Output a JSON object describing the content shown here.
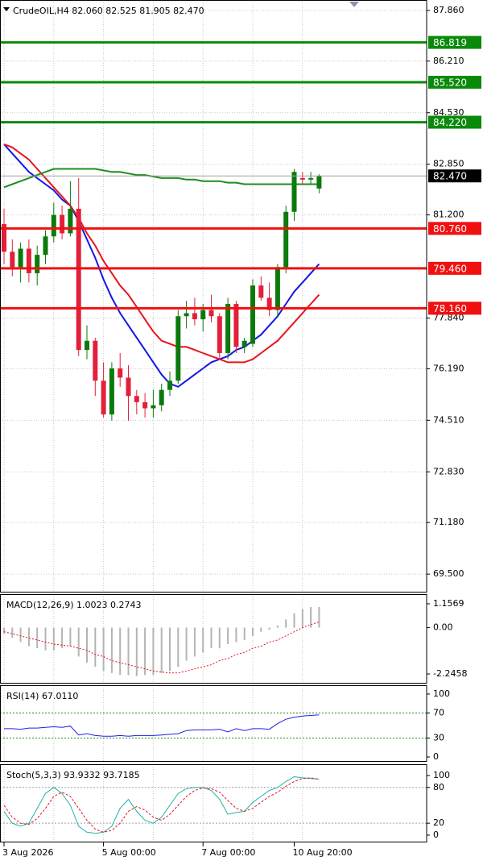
{
  "chart_data": [
    {
      "type": "candlestick",
      "title": "CrudeOIL,H4 82.060 82.525 81.905 82.470",
      "categories": [
        "3 Aug 2026",
        null,
        null,
        null,
        null,
        null,
        null,
        null,
        null,
        null,
        null,
        null,
        "5 Aug 00:00",
        null,
        null,
        null,
        null,
        null,
        null,
        null,
        null,
        null,
        null,
        null,
        "7 Aug 00:00",
        null,
        null,
        null,
        null,
        null,
        null,
        null,
        null,
        null,
        null,
        "10 Aug 20:00",
        null,
        null,
        null
      ],
      "open": [
        80.9,
        80.0,
        79.5,
        80.1,
        79.3,
        79.9,
        80.5,
        81.2,
        80.6,
        81.4,
        76.8,
        77.1,
        75.8,
        74.7,
        76.2,
        75.9,
        75.3,
        75.1,
        74.9,
        75.0,
        75.5,
        75.8,
        77.9,
        78.0,
        77.8,
        78.1,
        77.9,
        76.7,
        78.3,
        76.9,
        77.0,
        78.9,
        78.5,
        78.1,
        79.5,
        81.3,
        82.4,
        82.35,
        82.06
      ],
      "high": [
        81.4,
        80.4,
        80.3,
        80.4,
        80.2,
        80.7,
        81.6,
        81.5,
        82.3,
        82.4,
        77.6,
        77.2,
        76.4,
        76.4,
        76.7,
        76.3,
        75.5,
        75.4,
        75.5,
        75.7,
        76.1,
        78.1,
        78.4,
        78.5,
        78.3,
        78.6,
        78.0,
        78.5,
        78.4,
        77.2,
        79.1,
        79.2,
        79.0,
        79.6,
        81.5,
        82.7,
        82.6,
        82.6,
        82.525
      ],
      "low": [
        79.6,
        79.2,
        79.0,
        79.0,
        78.9,
        79.6,
        80.3,
        80.4,
        80.5,
        76.6,
        76.5,
        75.3,
        74.6,
        74.5,
        75.6,
        74.5,
        74.7,
        74.6,
        74.6,
        74.8,
        75.3,
        75.7,
        77.5,
        77.6,
        77.4,
        77.7,
        76.5,
        76.5,
        76.7,
        76.7,
        76.9,
        78.4,
        77.9,
        77.9,
        79.3,
        81.0,
        82.2,
        82.2,
        81.905
      ],
      "close": [
        80.0,
        79.5,
        80.1,
        79.3,
        79.9,
        80.5,
        81.2,
        80.6,
        81.4,
        76.8,
        77.1,
        75.8,
        74.7,
        76.2,
        75.9,
        75.3,
        75.1,
        74.9,
        75.0,
        75.5,
        75.8,
        77.9,
        78.0,
        77.8,
        78.1,
        77.9,
        76.7,
        78.3,
        76.9,
        77.1,
        78.9,
        78.5,
        78.1,
        79.5,
        81.3,
        82.6,
        82.35,
        82.4,
        82.47
      ],
      "up_color": "#0b7a0b",
      "down_color": "#e3203a",
      "series": [
        {
          "color": "#1515e6",
          "values": [
            83.5,
            83.2,
            82.9,
            82.6,
            82.4,
            82.2,
            82.0,
            81.7,
            81.5,
            81.0,
            80.4,
            79.8,
            79.1,
            78.5,
            78.0,
            77.6,
            77.2,
            76.8,
            76.4,
            76.0,
            75.7,
            75.6,
            75.8,
            76.0,
            76.2,
            76.4,
            76.5,
            76.6,
            76.8,
            76.9,
            77.1,
            77.3,
            77.6,
            77.9,
            78.3,
            78.7,
            79.0,
            79.3,
            79.6
          ]
        },
        {
          "color": "#e8141e",
          "values": [
            83.5,
            83.4,
            83.2,
            83.0,
            82.7,
            82.4,
            82.1,
            81.8,
            81.5,
            81.1,
            80.6,
            80.2,
            79.7,
            79.3,
            78.9,
            78.6,
            78.2,
            77.8,
            77.4,
            77.1,
            77.0,
            76.9,
            76.9,
            76.8,
            76.7,
            76.6,
            76.5,
            76.4,
            76.4,
            76.4,
            76.5,
            76.7,
            76.9,
            77.1,
            77.4,
            77.7,
            78.0,
            78.3,
            78.6
          ]
        },
        {
          "color": "#1e8c1e",
          "values": [
            82.1,
            82.2,
            82.3,
            82.4,
            82.5,
            82.6,
            82.7,
            82.7,
            82.7,
            82.7,
            82.7,
            82.7,
            82.65,
            82.6,
            82.6,
            82.55,
            82.5,
            82.5,
            82.45,
            82.4,
            82.4,
            82.4,
            82.35,
            82.35,
            82.3,
            82.3,
            82.3,
            82.25,
            82.25,
            82.2,
            82.2,
            82.2,
            82.2,
            82.2,
            82.2,
            82.2,
            82.2,
            82.2,
            82.2
          ]
        }
      ],
      "hlines": {
        "values": [
          86.819,
          85.52,
          84.22,
          80.76,
          79.46,
          78.16
        ],
        "value_labels": [
          "86.819",
          "85.520",
          "84.220",
          "80.760",
          "79.460",
          "78.160"
        ],
        "colors": [
          "#0a8a0a",
          "#0a8a0a",
          "#0a8a0a",
          "#f01010",
          "#f01010",
          "#f01010"
        ]
      },
      "last": {
        "value": 82.47,
        "label": "82.470"
      },
      "ylim": [
        68.9,
        88.2
      ],
      "yticks": [
        {
          "value": 87.86,
          "label": "87.860"
        },
        {
          "value": 86.21,
          "label": "86.210"
        },
        {
          "value": 84.53,
          "label": "84.530"
        },
        {
          "value": 82.85,
          "label": "82.850"
        },
        {
          "value": 81.2,
          "label": "81.200"
        },
        {
          "value": 77.84,
          "label": "77.840"
        },
        {
          "value": 76.19,
          "label": "76.190"
        },
        {
          "value": 74.51,
          "label": "74.510"
        },
        {
          "value": 72.83,
          "label": "72.830"
        },
        {
          "value": 71.18,
          "label": "71.180"
        },
        {
          "value": 69.5,
          "label": "69.500"
        }
      ],
      "grid": true
    },
    {
      "type": "macd",
      "title": "MACD(12,26,9) 1.0023 0.2743",
      "histogram": {
        "color": "#b4b4b4",
        "values": [
          -0.3,
          -0.5,
          -0.7,
          -0.9,
          -1.0,
          -1.1,
          -1.1,
          -1.0,
          -0.9,
          -1.4,
          -1.7,
          -1.9,
          -2.1,
          -2.2,
          -2.3,
          -2.3,
          -2.35,
          -2.3,
          -2.3,
          -2.2,
          -2.1,
          -1.9,
          -1.6,
          -1.4,
          -1.2,
          -1.0,
          -1.0,
          -0.8,
          -0.7,
          -0.6,
          -0.4,
          -0.2,
          -0.1,
          0.1,
          0.4,
          0.7,
          0.9,
          1.0,
          1.0023
        ]
      },
      "signal": {
        "color": "#e8141e",
        "values": [
          -0.2,
          -0.3,
          -0.4,
          -0.5,
          -0.6,
          -0.7,
          -0.8,
          -0.85,
          -0.9,
          -1.0,
          -1.1,
          -1.3,
          -1.4,
          -1.6,
          -1.7,
          -1.8,
          -1.9,
          -2.0,
          -2.1,
          -2.15,
          -2.2,
          -2.2,
          -2.1,
          -2.0,
          -1.9,
          -1.8,
          -1.6,
          -1.5,
          -1.3,
          -1.2,
          -1.0,
          -0.9,
          -0.7,
          -0.6,
          -0.4,
          -0.2,
          0.0,
          0.15,
          0.2743
        ]
      },
      "ylim": [
        -2.715,
        1.626
      ],
      "yticks": [
        1.1569,
        {
          "value": 0,
          "label": "0.00"
        },
        -2.2458
      ]
    },
    {
      "type": "line",
      "title": "RSI(14) 67.0110",
      "series": [
        {
          "color": "#1e1ee6",
          "dash": false,
          "values": [
            45,
            45,
            44,
            46,
            46,
            47,
            48,
            47,
            49,
            35,
            37,
            34,
            33,
            33,
            34,
            33,
            34,
            34,
            34,
            35,
            36,
            37,
            42,
            43,
            43,
            43,
            44,
            40,
            45,
            42,
            45,
            45,
            44,
            53,
            60,
            63,
            65,
            66,
            67.011
          ]
        }
      ],
      "levels": [
        70,
        30
      ],
      "level_color": "#1e8c1e",
      "ylim": [
        -7.7,
        114
      ],
      "yticks": [
        100,
        70,
        30,
        0
      ]
    },
    {
      "type": "line",
      "title": "Stoch(5,3,3) 93.9332 93.7185",
      "series": [
        {
          "color": "#20b2aa",
          "dash": false,
          "values": [
            40,
            20,
            15,
            20,
            45,
            70,
            80,
            70,
            50,
            15,
            5,
            3,
            5,
            15,
            45,
            60,
            40,
            25,
            20,
            30,
            50,
            70,
            78,
            80,
            80,
            75,
            60,
            35,
            38,
            40,
            55,
            65,
            75,
            80,
            90,
            98,
            96,
            95,
            93.9332
          ]
        },
        {
          "color": "#e8141e",
          "dash": true,
          "values": [
            50,
            30,
            20,
            18,
            28,
            45,
            65,
            72,
            65,
            45,
            25,
            10,
            5,
            8,
            20,
            40,
            48,
            42,
            30,
            25,
            35,
            50,
            65,
            75,
            79,
            78,
            72,
            58,
            45,
            40,
            45,
            55,
            65,
            72,
            82,
            90,
            95,
            96,
            93.7185
          ]
        }
      ],
      "levels": [
        80,
        20
      ],
      "level_color": "#a0a0a0",
      "ylim": [
        -12.2,
        118.9
      ],
      "yticks": [
        100,
        80,
        20,
        0
      ]
    }
  ]
}
